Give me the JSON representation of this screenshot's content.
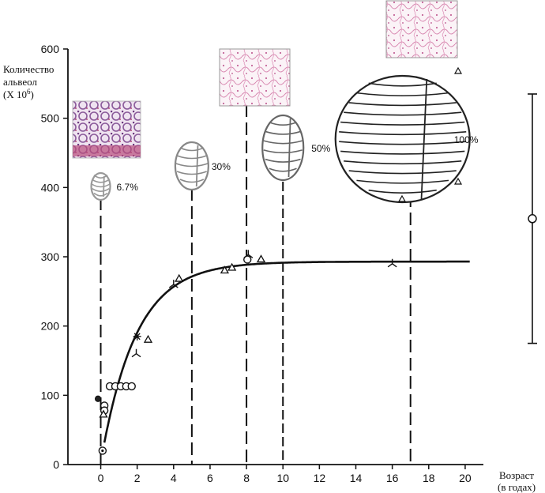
{
  "chart_data": {
    "type": "scatter",
    "title": "",
    "ylabel_lines": [
      "Количество",
      "альвеол"
    ],
    "ylabel_unit_base": "(X 10",
    "ylabel_unit_exp": "6",
    "ylabel_unit_close": ")",
    "xlabel_lines": [
      "Возраст",
      "(в годах)"
    ],
    "xlim": [
      -1.8,
      21
    ],
    "ylim": [
      0,
      600
    ],
    "x_ticks": [
      0,
      2,
      4,
      6,
      8,
      10,
      12,
      14,
      16,
      18,
      20
    ],
    "y_ticks": [
      0,
      100,
      200,
      300,
      400,
      500,
      600
    ],
    "grid": false,
    "fit_curve": {
      "plateau": 293,
      "start_x": 0.2,
      "end_x": 20.3
    },
    "vertical_markers": [
      0,
      5,
      8,
      10,
      17
    ],
    "chest_sizes": [
      {
        "x": 0,
        "label": "6.7%"
      },
      {
        "x": 5,
        "label": "30%"
      },
      {
        "x": 8,
        "label": ""
      },
      {
        "x": 10,
        "label": "50%"
      },
      {
        "x": 17,
        "label": "100%"
      }
    ],
    "adult_range": {
      "low": 175,
      "high": 535,
      "mean": 355
    },
    "points": [
      {
        "x": -0.15,
        "y": 95,
        "m": "filled"
      },
      {
        "x": 0.2,
        "y": 85,
        "m": "circle"
      },
      {
        "x": 0.2,
        "y": 78,
        "m": "circle"
      },
      {
        "x": 0.15,
        "y": 72,
        "m": "triangle"
      },
      {
        "x": 0.1,
        "y": 20,
        "m": "circle"
      },
      {
        "x": 0.5,
        "y": 113,
        "m": "circle"
      },
      {
        "x": 0.8,
        "y": 113,
        "m": "circle"
      },
      {
        "x": 1.1,
        "y": 113,
        "m": "circle"
      },
      {
        "x": 1.4,
        "y": 113,
        "m": "circle"
      },
      {
        "x": 1.7,
        "y": 113,
        "m": "circle"
      },
      {
        "x": 1.95,
        "y": 160,
        "m": "tri-star"
      },
      {
        "x": 2.0,
        "y": 185,
        "m": "asterisk"
      },
      {
        "x": 2.6,
        "y": 180,
        "m": "triangle"
      },
      {
        "x": 4.0,
        "y": 260,
        "m": "tri-star"
      },
      {
        "x": 4.3,
        "y": 268,
        "m": "triangle"
      },
      {
        "x": 6.8,
        "y": 280,
        "m": "triangle"
      },
      {
        "x": 7.2,
        "y": 284,
        "m": "triangle"
      },
      {
        "x": 8.05,
        "y": 296,
        "m": "circle"
      },
      {
        "x": 8.1,
        "y": 303,
        "m": "tri-star"
      },
      {
        "x": 8.8,
        "y": 296,
        "m": "triangle"
      },
      {
        "x": 16.0,
        "y": 290,
        "m": "tri-star"
      }
    ]
  },
  "colors": {
    "ink": "#111111",
    "histo_early": "#9a6fa6",
    "histo_late": "#e7a9c6",
    "rib_light": "#aaaaaa",
    "rib_dark": "#333333"
  }
}
